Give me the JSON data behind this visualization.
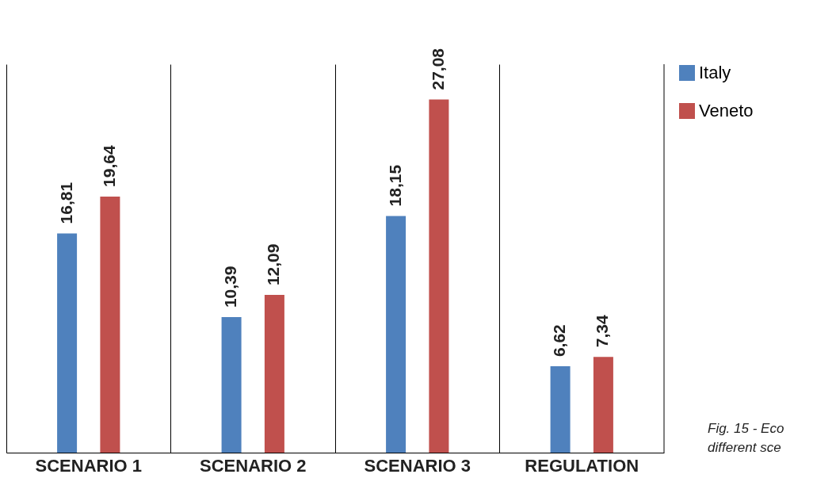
{
  "chart_data": {
    "type": "bar",
    "categories": [
      "SCENARIO 1",
      "SCENARIO 2",
      "SCENARIO 3",
      "REGULATION"
    ],
    "series": [
      {
        "name": "Italy",
        "color": "#4f81bd",
        "values": [
          16.81,
          10.39,
          18.15,
          6.62
        ],
        "value_labels": [
          "16,81",
          "10,39",
          "18,15",
          "6,62"
        ]
      },
      {
        "name": "Veneto",
        "color": "#c0504d",
        "values": [
          19.64,
          12.09,
          27.08,
          7.34
        ],
        "value_labels": [
          "19,64",
          "12,09",
          "27,08",
          "7,34"
        ]
      }
    ],
    "grid": "x",
    "legend": "right",
    "annotations": [
      "Fig. 15 - Eco",
      "different sce"
    ]
  }
}
